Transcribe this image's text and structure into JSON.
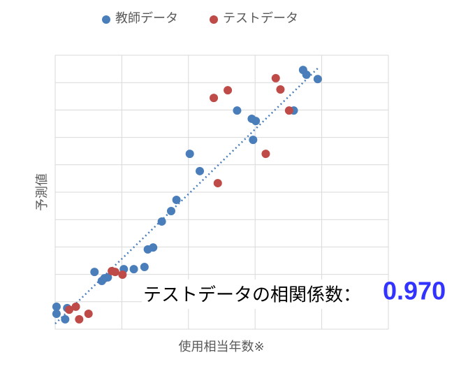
{
  "chart_data": {
    "type": "scatter",
    "y_label": "予測値",
    "x_label": "使用相当年数※",
    "xlim": [
      0,
      5
    ],
    "ylim": [
      0,
      10
    ],
    "xticks": [
      0,
      1,
      2,
      3,
      4,
      5
    ],
    "yticks": [
      0,
      1,
      2,
      3,
      4,
      5,
      6,
      7,
      8,
      9,
      10
    ],
    "tick_labels": false,
    "grid": true,
    "legend": "top",
    "series": [
      {
        "name": "教師データ",
        "color": "#4a7ebb",
        "x": [
          0.02,
          0.02,
          0.15,
          0.18,
          0.59,
          0.7,
          0.74,
          0.79,
          1.03,
          1.18,
          1.34,
          1.39,
          1.47,
          1.6,
          1.74,
          1.82,
          2.02,
          2.17,
          2.73,
          2.95,
          3.01,
          2.97,
          3.58,
          3.72,
          3.77,
          3.94
        ],
        "values": [
          0.82,
          0.56,
          0.36,
          0.77,
          2.09,
          1.76,
          1.86,
          1.89,
          2.19,
          2.19,
          2.27,
          2.91,
          2.98,
          3.93,
          4.31,
          4.72,
          6.4,
          5.77,
          7.98,
          7.68,
          7.6,
          6.91,
          7.98,
          9.46,
          9.29,
          9.13
        ]
      },
      {
        "name": "テストデータ",
        "color": "#be4b48",
        "x": [
          0.21,
          0.31,
          0.36,
          0.5,
          0.85,
          0.9,
          1.01,
          2.38,
          2.59,
          2.44,
          3.16,
          3.31,
          3.38,
          3.51
        ],
        "values": [
          0.71,
          0.82,
          0.36,
          0.56,
          2.12,
          2.09,
          1.99,
          8.44,
          8.72,
          5.33,
          6.4,
          9.16,
          8.75,
          7.98
        ]
      }
    ],
    "trendline": {
      "color": "#4a7ebb",
      "x": [
        0,
        3.94
      ],
      "values": [
        0.2,
        9.52
      ]
    },
    "annotation": {
      "label": "テストデータの相関係数：",
      "value": "0.970",
      "value_color": "#3333ff"
    }
  }
}
